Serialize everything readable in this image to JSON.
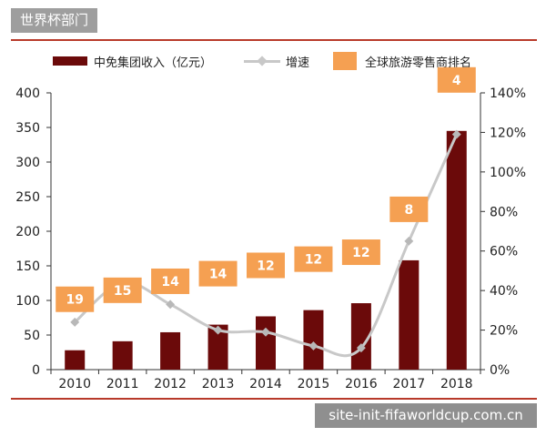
{
  "header": {
    "tag": "世界杯部门"
  },
  "chart_data": {
    "type": "bar",
    "categories": [
      "2010",
      "2011",
      "2012",
      "2013",
      "2014",
      "2015",
      "2016",
      "2017",
      "2018"
    ],
    "series": [
      {
        "name": "中免集团收入（亿元）",
        "type": "bar",
        "axis": "left",
        "color": "#6b0a0a",
        "values": [
          28,
          41,
          54,
          65,
          77,
          86,
          96,
          158,
          345
        ]
      },
      {
        "name": "增速",
        "type": "line",
        "axis": "right",
        "color": "#c8c8c8",
        "values": [
          0.24,
          0.44,
          0.33,
          0.2,
          0.19,
          0.12,
          0.11,
          0.65,
          1.19
        ]
      },
      {
        "name": "全球旅游零售商排名",
        "type": "label",
        "color": "#f5a052",
        "values": [
          19,
          15,
          14,
          14,
          12,
          12,
          12,
          8,
          4
        ]
      }
    ],
    "y_left": {
      "min": 0,
      "max": 400,
      "ticks": [
        "0",
        "50",
        "100",
        "150",
        "200",
        "250",
        "300",
        "350",
        "400"
      ]
    },
    "y_right": {
      "min": 0,
      "max": 1.4,
      "ticks": [
        "0%",
        "20%",
        "40%",
        "60%",
        "80%",
        "100%",
        "120%",
        "140%"
      ]
    },
    "legend_position": "top"
  },
  "watermark": "site-init-fifaworldcup.com.cn"
}
